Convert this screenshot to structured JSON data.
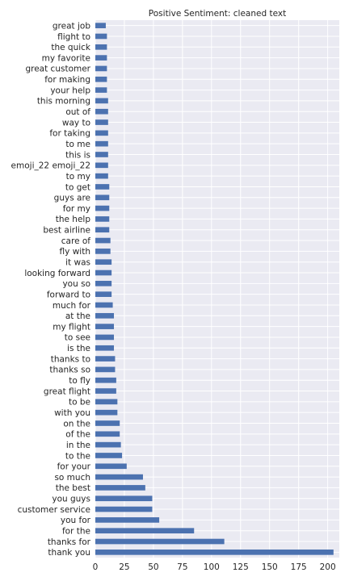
{
  "chart_data": {
    "type": "bar",
    "orientation": "horizontal",
    "title": "Positive Sentiment: cleaned text",
    "xlabel": "",
    "ylabel": "",
    "xlim": [
      0,
      210
    ],
    "xticks": [
      0,
      25,
      50,
      75,
      100,
      125,
      150,
      175,
      200
    ],
    "grid": true,
    "bar_color": "#4c72b0",
    "background_color": "#eaeaf2",
    "categories": [
      "thank you",
      "thanks for",
      "for the",
      "you for",
      "customer service",
      "you guys",
      "the best",
      "so much",
      "for your",
      "to the",
      "in the",
      "of the",
      "on the",
      "with you",
      "to be",
      "great flight",
      "to fly",
      "thanks so",
      "thanks to",
      "is the",
      "to see",
      "my flight",
      "at the",
      "much for",
      "forward to",
      "you so",
      "looking forward",
      "it was",
      "fly with",
      "care of",
      "best airline",
      "the help",
      "for my",
      "guys are",
      "to get",
      "to my",
      "emoji_22 emoji_22",
      "this is",
      "to me",
      "for taking",
      "way to",
      "out of",
      "this morning",
      "your help",
      "for making",
      "great customer",
      "my favorite",
      "the quick",
      "flight to",
      "great job"
    ],
    "values": [
      205,
      111,
      85,
      55,
      49,
      49,
      43,
      41,
      27,
      23,
      22,
      21,
      21,
      19,
      19,
      18,
      18,
      17,
      17,
      16,
      16,
      16,
      16,
      15,
      14,
      14,
      14,
      14,
      13,
      13,
      12,
      12,
      12,
      12,
      12,
      11,
      11,
      11,
      11,
      11,
      11,
      11,
      11,
      10,
      10,
      10,
      10,
      10,
      10,
      9
    ]
  }
}
